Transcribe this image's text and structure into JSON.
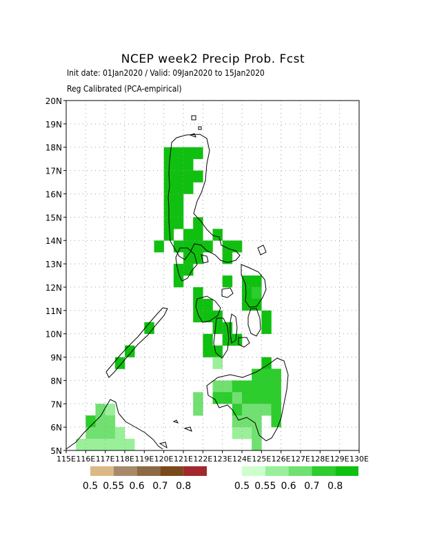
{
  "title": "NCEP week2 Precip Prob. Fcst",
  "subtitle_line1": "Init date: 01Jan2020 / Valid: 09Jan2020 to 15Jan2020",
  "subtitle_line2": "Reg Calibrated (PCA-empirical)",
  "map": {
    "lon_range": [
      115,
      130
    ],
    "lat_range": [
      5,
      20
    ],
    "grid": true,
    "lat_labels": [
      "5N",
      "6N",
      "7N",
      "8N",
      "9N",
      "10N",
      "11N",
      "12N",
      "13N",
      "14N",
      "15N",
      "16N",
      "17N",
      "18N",
      "19N",
      "20N"
    ],
    "lon_labels": [
      "115E",
      "116E",
      "117E",
      "118E",
      "119E",
      "120E",
      "121E",
      "122E",
      "123E",
      "124E",
      "125E",
      "126E",
      "127E",
      "128E",
      "129E",
      "130E"
    ],
    "cell_deg": 0.5,
    "colors": {
      "wet": [
        "#ccffcc",
        "#99f099",
        "#70e070",
        "#2ccd2c",
        "#10c010"
      ]
    },
    "wet_cells": [
      [
        120.25,
        17.75,
        4
      ],
      [
        120.75,
        17.75,
        4
      ],
      [
        121.25,
        17.75,
        4
      ],
      [
        121.75,
        17.75,
        4
      ],
      [
        120.25,
        17.25,
        4
      ],
      [
        120.75,
        17.25,
        4
      ],
      [
        121.25,
        17.25,
        4
      ],
      [
        120.25,
        16.75,
        4
      ],
      [
        120.75,
        16.75,
        4
      ],
      [
        121.25,
        16.75,
        4
      ],
      [
        121.75,
        16.75,
        4
      ],
      [
        120.25,
        16.25,
        4
      ],
      [
        120.75,
        16.25,
        4
      ],
      [
        121.25,
        16.25,
        4
      ],
      [
        120.25,
        15.75,
        4
      ],
      [
        120.75,
        15.75,
        4
      ],
      [
        120.25,
        15.25,
        4
      ],
      [
        120.75,
        15.25,
        4
      ],
      [
        120.25,
        14.75,
        4
      ],
      [
        120.75,
        14.75,
        4
      ],
      [
        120.25,
        14.25,
        4
      ],
      [
        121.25,
        14.25,
        4
      ],
      [
        121.75,
        14.25,
        4
      ],
      [
        122.75,
        14.25,
        4
      ],
      [
        121.75,
        14.75,
        4
      ],
      [
        119.75,
        13.75,
        4
      ],
      [
        120.75,
        13.75,
        4
      ],
      [
        121.25,
        13.75,
        4
      ],
      [
        121.75,
        13.75,
        4
      ],
      [
        122.25,
        13.75,
        4
      ],
      [
        121.25,
        13.25,
        4
      ],
      [
        121.75,
        13.25,
        4
      ],
      [
        120.75,
        12.75,
        4
      ],
      [
        121.25,
        12.75,
        4
      ],
      [
        120.75,
        12.25,
        4
      ],
      [
        123.25,
        13.75,
        4
      ],
      [
        123.75,
        13.75,
        4
      ],
      [
        123.25,
        13.25,
        4
      ],
      [
        123.25,
        12.25,
        4
      ],
      [
        124.25,
        12.25,
        4
      ],
      [
        124.75,
        12.25,
        4
      ],
      [
        124.25,
        11.75,
        4
      ],
      [
        124.75,
        11.75,
        3
      ],
      [
        121.75,
        11.75,
        4
      ],
      [
        121.75,
        11.25,
        4
      ],
      [
        122.25,
        11.25,
        4
      ],
      [
        124.25,
        11.25,
        4
      ],
      [
        124.75,
        11.25,
        4
      ],
      [
        121.75,
        10.75,
        4
      ],
      [
        122.25,
        10.75,
        4
      ],
      [
        122.75,
        10.75,
        4
      ],
      [
        125.25,
        10.75,
        4
      ],
      [
        122.75,
        10.25,
        4
      ],
      [
        123.25,
        10.25,
        4
      ],
      [
        125.25,
        10.25,
        4
      ],
      [
        119.25,
        10.25,
        4
      ],
      [
        122.25,
        9.75,
        4
      ],
      [
        123.25,
        9.75,
        4
      ],
      [
        123.75,
        9.75,
        4
      ],
      [
        122.25,
        9.25,
        4
      ],
      [
        122.75,
        9.25,
        4
      ],
      [
        118.25,
        9.25,
        4
      ],
      [
        117.75,
        8.75,
        4
      ],
      [
        125.25,
        8.75,
        4
      ],
      [
        122.75,
        8.75,
        1
      ],
      [
        124.75,
        8.25,
        3
      ],
      [
        125.25,
        8.25,
        3
      ],
      [
        125.75,
        8.25,
        3
      ],
      [
        122.75,
        7.75,
        2
      ],
      [
        123.25,
        7.75,
        2
      ],
      [
        123.75,
        7.75,
        3
      ],
      [
        124.25,
        7.75,
        3
      ],
      [
        124.75,
        7.75,
        3
      ],
      [
        125.25,
        7.75,
        3
      ],
      [
        125.75,
        7.75,
        3
      ],
      [
        121.75,
        7.25,
        2
      ],
      [
        122.75,
        7.25,
        3
      ],
      [
        123.25,
        7.25,
        3
      ],
      [
        123.75,
        7.25,
        2
      ],
      [
        124.25,
        7.25,
        3
      ],
      [
        124.75,
        7.25,
        3
      ],
      [
        125.25,
        7.25,
        3
      ],
      [
        125.75,
        7.25,
        3
      ],
      [
        121.75,
        6.75,
        2
      ],
      [
        123.75,
        6.75,
        3
      ],
      [
        124.25,
        6.75,
        2
      ],
      [
        124.75,
        6.75,
        2
      ],
      [
        125.25,
        6.75,
        2
      ],
      [
        125.75,
        6.75,
        3
      ],
      [
        123.75,
        6.25,
        2
      ],
      [
        124.25,
        6.25,
        2
      ],
      [
        124.75,
        6.25,
        2
      ],
      [
        125.75,
        6.25,
        3
      ],
      [
        123.75,
        5.75,
        1
      ],
      [
        124.25,
        5.75,
        1
      ],
      [
        124.75,
        5.75,
        2
      ],
      [
        124.75,
        5.25,
        2
      ],
      [
        116.75,
        6.75,
        2
      ],
      [
        117.25,
        6.75,
        1
      ],
      [
        116.25,
        6.25,
        3
      ],
      [
        116.75,
        6.25,
        2
      ],
      [
        117.25,
        6.25,
        2
      ],
      [
        116.25,
        5.75,
        2
      ],
      [
        116.75,
        5.75,
        2
      ],
      [
        117.25,
        5.75,
        2
      ],
      [
        117.75,
        5.75,
        1
      ],
      [
        117.75,
        5.25,
        1
      ],
      [
        118.25,
        5.25,
        1
      ],
      [
        115.75,
        5.25,
        1
      ],
      [
        116.25,
        5.25,
        1
      ],
      [
        116.75,
        5.25,
        1
      ],
      [
        117.25,
        5.25,
        1
      ]
    ]
  },
  "legend": {
    "dry_colors": [
      "#dcb887",
      "#a88a6a",
      "#8c6a44",
      "#7a4a1c",
      "#a1282c"
    ],
    "wet_colors": [
      "#ccffcc",
      "#99f099",
      "#70e070",
      "#2ccd2c",
      "#10c010"
    ],
    "dry_labels": [
      "0.5",
      "0.55",
      "0.6",
      "0.7",
      "0.8"
    ],
    "wet_labels": [
      "0.5",
      "0.55",
      "0.6",
      "0.7",
      "0.8"
    ]
  }
}
